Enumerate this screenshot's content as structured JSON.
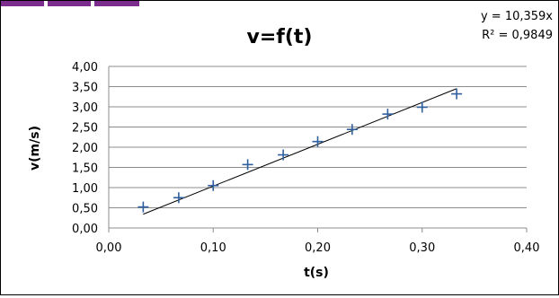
{
  "chart_data": {
    "type": "scatter",
    "title": "v=f(t)",
    "xlabel": "t(s)",
    "ylabel": "v(m/s)",
    "xlim": [
      0,
      0.4
    ],
    "ylim": [
      0,
      4
    ],
    "x_ticks": [
      "0,00",
      "0,10",
      "0,20",
      "0,30",
      "0,40"
    ],
    "y_ticks": [
      "0,00",
      "0,50",
      "1,00",
      "1,50",
      "2,00",
      "2,50",
      "3,00",
      "3,50",
      "4,00"
    ],
    "grid": "horizontal",
    "marker": "plus",
    "series": [
      {
        "x": [
          0.033,
          0.067,
          0.1,
          0.133,
          0.167,
          0.2,
          0.233,
          0.267,
          0.3,
          0.333
        ],
        "y": [
          0.52,
          0.75,
          1.05,
          1.57,
          1.81,
          2.14,
          2.44,
          2.82,
          2.99,
          3.32
        ]
      }
    ],
    "trendline": {
      "type": "linear",
      "slope": 10.359,
      "intercept": 0,
      "x_range": [
        0.033,
        0.333
      ]
    },
    "annotations": {
      "equation": "y = 10,359x",
      "r_squared": "R² = 0,9849"
    }
  },
  "colors": {
    "marker": "#2f5f9e",
    "trendline": "#000000",
    "grid": "#8c8c8c",
    "accent_strip": "#7b2c8c"
  }
}
